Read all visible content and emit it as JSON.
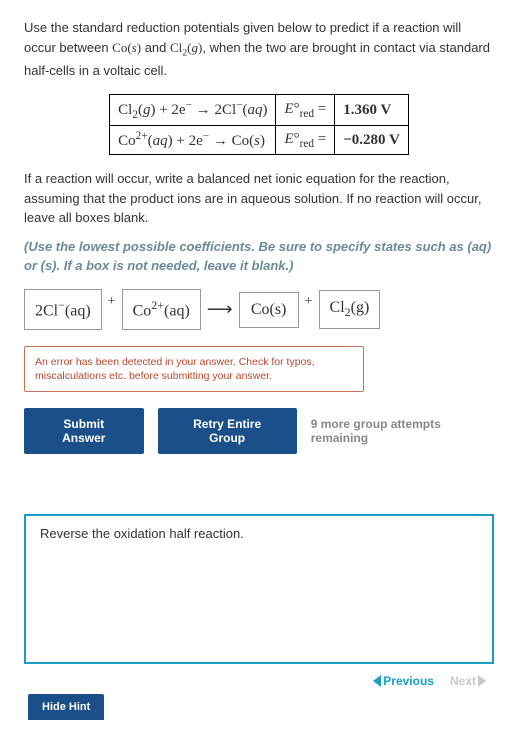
{
  "question": {
    "intro_html": "Use the standard reduction potentials given below to predict if a reaction will occur between <span class='formula'>Co(<i>s</i>)</span> and <span class='formula'>Cl<span class='sub'>2</span>(<i>g</i>)</span>, when the two are brought in contact via standard half-cells in a voltaic cell.",
    "table": {
      "rows": [
        {
          "rxn_html": "Cl<span class='sub'>2</span>(<i>g</i>) + 2e<span class='sup'>−</span> → 2Cl<span class='sup'>−</span>(<i>aq</i>)",
          "label_html": "<i>E</i>°<span class='sub'>red</span> =",
          "value": "1.360 V"
        },
        {
          "rxn_html": "Co<span class='sup'>2+</span>(<i>aq</i>) + 2e<span class='sup'>−</span> → Co(<i>s</i>)",
          "label_html": "<i>E</i>°<span class='sub'>red</span> =",
          "value": "−0.280 V"
        }
      ]
    },
    "instruction": "If a reaction will occur, write a balanced net ionic equation for the reaction, assuming that the product ions are in aqueous solution. If no reaction will occur, leave all boxes blank.",
    "coeff_hint": "(Use the lowest possible coefficients. Be sure to specify states such as (aq) or (s). If a box is not needed, leave it blank.)"
  },
  "equation": {
    "reactant1_html": "2Cl<span class='sup'>−</span>(aq)",
    "reactant2_html": "Co<span class='sup'>2+</span>(aq)",
    "product1_html": "Co(s)",
    "product2_html": "Cl<span class='sub'>2</span>(g)"
  },
  "error": "An error has been detected in your answer. Check for typos, miscalculations etc. before submitting your answer.",
  "buttons": {
    "submit": "Submit Answer",
    "retry": "Retry Entire Group",
    "attempts": "9 more group attempts remaining",
    "hide_hint": "Hide Hint"
  },
  "hint": {
    "text": "Reverse the oxidation half reaction.",
    "prev": "Previous",
    "next": "Next"
  },
  "colors": {
    "primary_btn": "#1a4f8a",
    "hint_border": "#1b9dc4",
    "error_border": "#c9735a",
    "error_text": "#b54b2f",
    "instr_color": "#6a8a9a",
    "muted": "#888"
  }
}
